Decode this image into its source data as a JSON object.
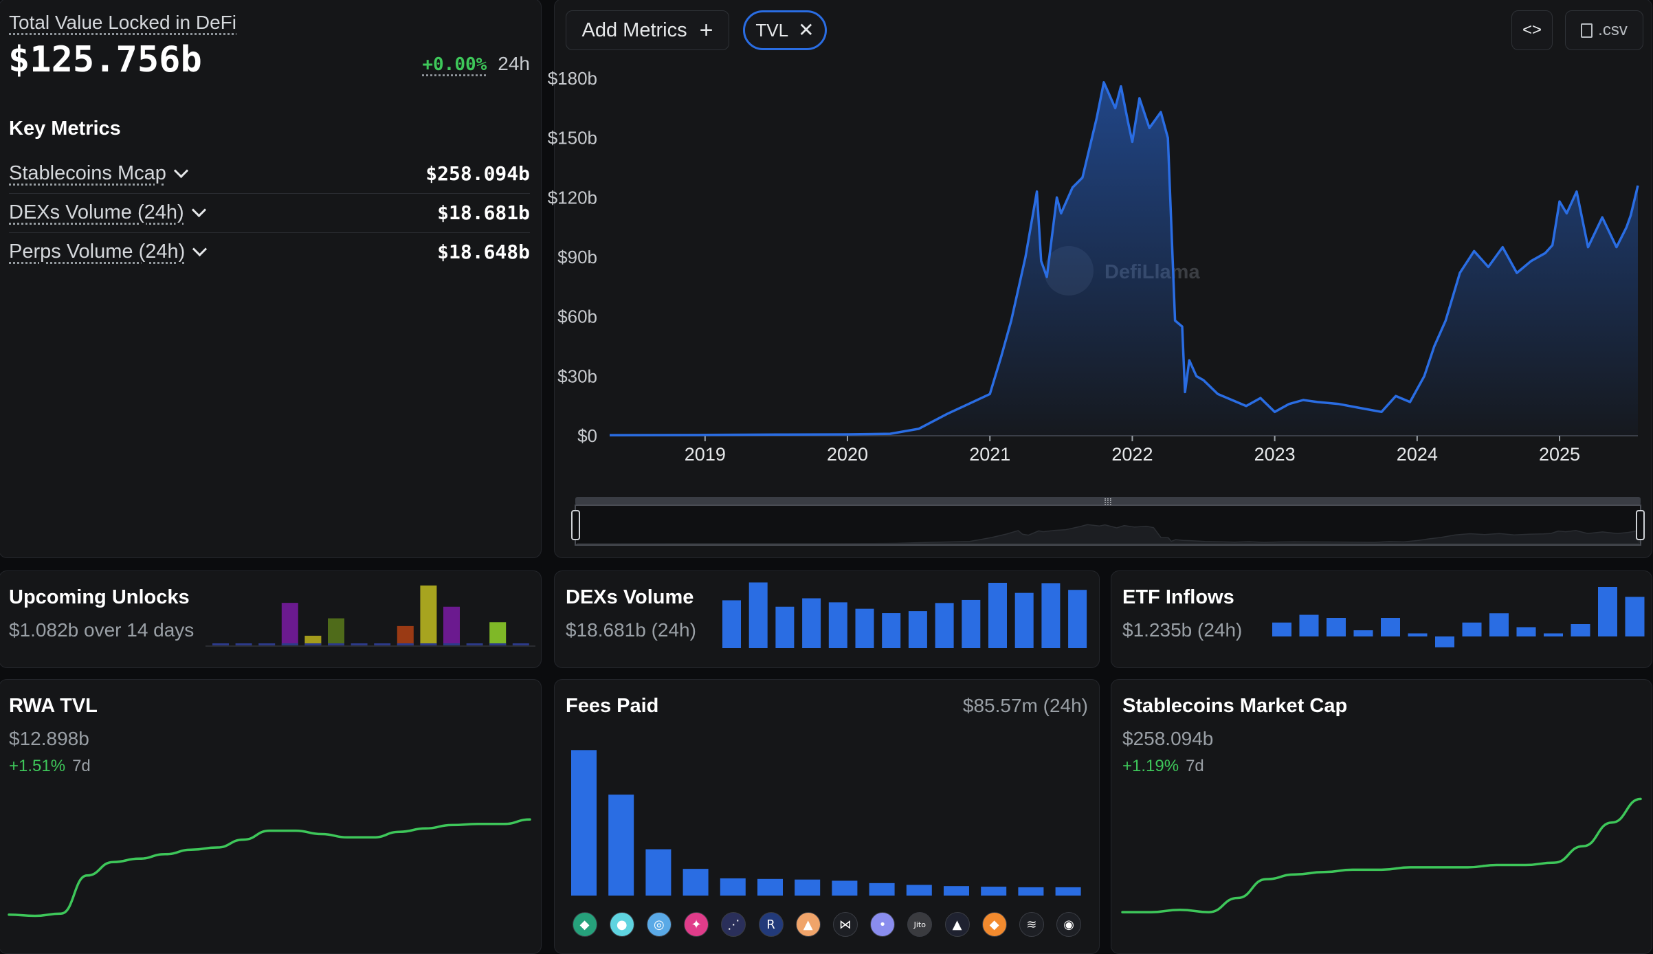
{
  "tvl_panel": {
    "title": "Total Value Locked in DeFi",
    "value": "$125.756b",
    "change": "+0.00%",
    "change_period": "24h",
    "key_metrics_title": "Key Metrics",
    "metrics": [
      {
        "label": "Stablecoins Mcap",
        "value": "$258.094b"
      },
      {
        "label": "DEXs Volume (24h)",
        "value": "$18.681b"
      },
      {
        "label": "Perps Volume (24h)",
        "value": "$18.648b"
      }
    ]
  },
  "main_chart": {
    "add_metrics_label": "Add Metrics",
    "tvl_chip_label": "TVL",
    "embed_label": "<>",
    "csv_label": ".csv",
    "watermark": "DefiLlama"
  },
  "chart_data": [
    {
      "type": "area",
      "title": "TVL",
      "y_ticks": [
        "$180b",
        "$150b",
        "$120b",
        "$90b",
        "$60b",
        "$30b",
        "$0"
      ],
      "y_tick_values": [
        180,
        150,
        120,
        90,
        60,
        30,
        0
      ],
      "ylim": [
        0,
        180
      ],
      "y_unit": "billion USD",
      "x_ticks": [
        "2019",
        "2020",
        "2021",
        "2022",
        "2023",
        "2024",
        "2025"
      ],
      "x_tick_values": [
        2019,
        2020,
        2021,
        2022,
        2023,
        2024,
        2025
      ],
      "xlim": [
        2018.33,
        2025.55
      ],
      "series": [
        {
          "name": "TVL",
          "x": [
            2018.33,
            2019.0,
            2019.5,
            2020.0,
            2020.3,
            2020.5,
            2020.7,
            2020.85,
            2021.0,
            2021.08,
            2021.15,
            2021.25,
            2021.33,
            2021.36,
            2021.4,
            2021.47,
            2021.5,
            2021.58,
            2021.65,
            2021.75,
            2021.8,
            2021.88,
            2021.92,
            2021.97,
            2022.0,
            2022.05,
            2022.12,
            2022.2,
            2022.25,
            2022.3,
            2022.35,
            2022.37,
            2022.4,
            2022.45,
            2022.5,
            2022.6,
            2022.7,
            2022.8,
            2022.9,
            2023.0,
            2023.1,
            2023.2,
            2023.3,
            2023.45,
            2023.6,
            2023.75,
            2023.85,
            2023.95,
            2024.05,
            2024.12,
            2024.2,
            2024.3,
            2024.4,
            2024.5,
            2024.6,
            2024.7,
            2024.8,
            2024.9,
            2024.95,
            2025.0,
            2025.05,
            2025.12,
            2025.2,
            2025.3,
            2025.4,
            2025.47,
            2025.5,
            2025.55
          ],
          "values": [
            0.3,
            0.4,
            0.6,
            0.7,
            1.0,
            3.5,
            11,
            16,
            21,
            40,
            58,
            90,
            123,
            88,
            80,
            120,
            112,
            125,
            130,
            160,
            178,
            165,
            176,
            158,
            148,
            170,
            155,
            163,
            150,
            58,
            55,
            22,
            38,
            30,
            28,
            21,
            18,
            15,
            19,
            12,
            16,
            18,
            17,
            16,
            14,
            12,
            20,
            17,
            30,
            45,
            58,
            82,
            93,
            85,
            95,
            82,
            88,
            92,
            96,
            118,
            112,
            123,
            95,
            110,
            95,
            105,
            111,
            126
          ]
        }
      ]
    },
    {
      "type": "bar",
      "title": "Upcoming Unlocks",
      "series": [
        {
          "name": "purple",
          "values": [
            0,
            0,
            0,
            22,
            0,
            0,
            0,
            0,
            0,
            0,
            20,
            0,
            0,
            0
          ]
        },
        {
          "name": "olive",
          "values": [
            0,
            0,
            0,
            0,
            5,
            0,
            0,
            0,
            0,
            0,
            0,
            0,
            0,
            0
          ]
        },
        {
          "name": "green",
          "values": [
            0,
            0,
            0,
            0,
            0,
            14,
            0,
            0,
            0,
            0,
            0,
            0,
            0,
            0
          ]
        },
        {
          "name": "orange",
          "values": [
            0,
            0,
            0,
            0,
            0,
            0,
            0,
            0,
            10,
            0,
            0,
            0,
            0,
            0
          ]
        },
        {
          "name": "yellow",
          "values": [
            0,
            0,
            0,
            0,
            0,
            0,
            0,
            0,
            0,
            31,
            0,
            0,
            0,
            0
          ]
        },
        {
          "name": "lime",
          "values": [
            0,
            0,
            0,
            0,
            0,
            0,
            0,
            0,
            0,
            0,
            0,
            0,
            12,
            0
          ]
        }
      ]
    },
    {
      "type": "bar",
      "title": "DEXs Volume",
      "values": [
        14.2,
        19.5,
        12.3,
        14.8,
        13.6,
        11.7,
        10.4,
        11.0,
        13.4,
        14.3,
        19.4,
        16.4,
        19.3,
        17.3
      ]
    },
    {
      "type": "bar",
      "title": "ETF Inflows",
      "values": [
        0.45,
        0.7,
        0.6,
        0.2,
        0.6,
        0.1,
        -0.35,
        0.45,
        0.75,
        0.3,
        0.1,
        0.4,
        1.6,
        1.28
      ]
    },
    {
      "type": "line",
      "title": "RWA TVL",
      "values": [
        4.5,
        4.4,
        4.6,
        8.0,
        9.2,
        9.5,
        9.9,
        10.3,
        10.5,
        11.2,
        12.0,
        12.0,
        11.7,
        11.4,
        11.4,
        11.9,
        12.2,
        12.5,
        12.6,
        12.6,
        13.0
      ]
    },
    {
      "type": "bar",
      "title": "Fees Paid",
      "values": [
        24.5,
        17.0,
        7.8,
        4.5,
        2.9,
        2.8,
        2.7,
        2.5,
        2.1,
        1.8,
        1.6,
        1.5,
        1.4,
        1.4
      ]
    },
    {
      "type": "line",
      "title": "Stablecoins Market Cap",
      "values": [
        152,
        152,
        153,
        152,
        158,
        166,
        168,
        169,
        170,
        170,
        171,
        171,
        171,
        172,
        172,
        173,
        180,
        190,
        200
      ]
    }
  ],
  "unlocks": {
    "title": "Upcoming Unlocks",
    "subtitle": "$1.082b over 14 days"
  },
  "dex_volume": {
    "title": "DEXs Volume",
    "subtitle": "$18.681b (24h)"
  },
  "etf": {
    "title": "ETF Inflows",
    "subtitle": "$1.235b (24h)"
  },
  "rwa": {
    "title": "RWA TVL",
    "value": "$12.898b",
    "change": "+1.51%",
    "period": "7d"
  },
  "fees": {
    "title": "Fees Paid",
    "value": "$85.57m (24h)",
    "icons": [
      {
        "name": "tether",
        "color": "#26a17b",
        "glyph": "◆"
      },
      {
        "name": "pancakeswap",
        "color": "#5fd4e0",
        "glyph": "●"
      },
      {
        "name": "circle",
        "color": "#5aa9e6",
        "glyph": "◎"
      },
      {
        "name": "hyperliquid",
        "color": "#e03c8a",
        "glyph": "✦"
      },
      {
        "name": "pumpfun",
        "color": "#2a2f5a",
        "glyph": "⋰"
      },
      {
        "name": "raydium",
        "color": "#223a7a",
        "glyph": "R"
      },
      {
        "name": "lido",
        "color": "#f0a46a",
        "glyph": "▲"
      },
      {
        "name": "meteora",
        "color": "#1d1f24",
        "glyph": "⋈"
      },
      {
        "name": "axiom",
        "color": "#8a8dee",
        "glyph": "•"
      },
      {
        "name": "jito",
        "color": "#3a3b3f",
        "glyph": "Jito"
      },
      {
        "name": "aave",
        "color": "#1f2230",
        "glyph": "▲"
      },
      {
        "name": "metamask",
        "color": "#f28a2e",
        "glyph": "◆"
      },
      {
        "name": "sky",
        "color": "#1d1f24",
        "glyph": "≋"
      },
      {
        "name": "bot",
        "color": "#1d1f24",
        "glyph": "◉"
      }
    ]
  },
  "stablecoins": {
    "title": "Stablecoins Market Cap",
    "value": "$258.094b",
    "change": "+1.19%",
    "period": "7d"
  },
  "colors": {
    "accent_blue": "#2a6de3",
    "green": "#3ec75a",
    "panel": "#151618"
  }
}
